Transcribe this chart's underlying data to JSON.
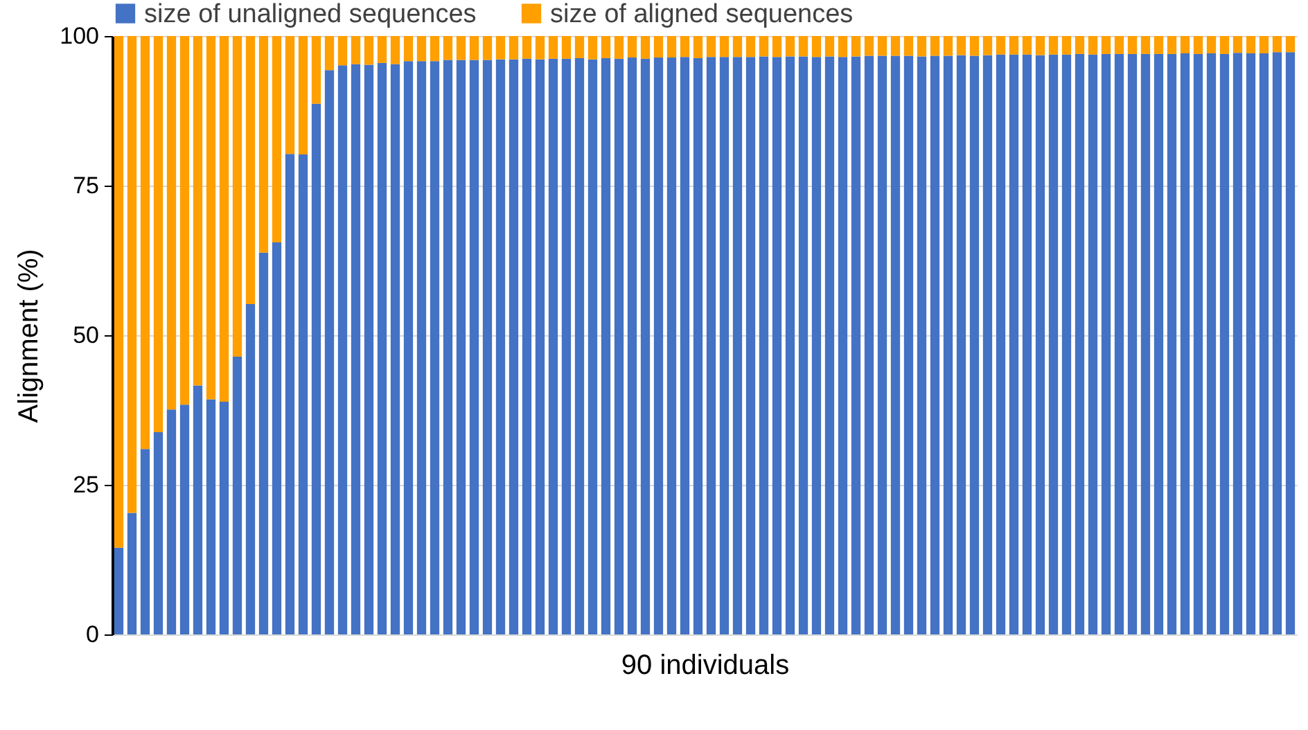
{
  "chart_data": {
    "type": "bar",
    "stacked": true,
    "xlabel": "90 individuals",
    "ylabel": "Alignment (%)",
    "categories": [
      null,
      null,
      null,
      null,
      null,
      null,
      null,
      null,
      null,
      null,
      null,
      null,
      null,
      null,
      null,
      null,
      null,
      null,
      null,
      null,
      null,
      null,
      null,
      null,
      null,
      null,
      null,
      null,
      null,
      null,
      null,
      null,
      null,
      null,
      null,
      null,
      null,
      null,
      null,
      null,
      null,
      null,
      null,
      null,
      null,
      null,
      null,
      null,
      null,
      null,
      null,
      null,
      null,
      null,
      null,
      null,
      null,
      null,
      null,
      null,
      null,
      null,
      null,
      null,
      null,
      null,
      null,
      null,
      null,
      null,
      null,
      null,
      null,
      null,
      null,
      null,
      null,
      null,
      null,
      null,
      null,
      null,
      null,
      null,
      null,
      null,
      null,
      null,
      null,
      null
    ],
    "series": [
      {
        "name": "size of unaligned sequences",
        "color": "#4472c4",
        "values": [
          14.5,
          20.3,
          31,
          33.8,
          37.6,
          38.4,
          41.6,
          39.3,
          38.9,
          46.4,
          55.2,
          63.8,
          65.5,
          80.3,
          80.2,
          88.7,
          94.3,
          95.1,
          95.3,
          95.2,
          95.5,
          95.3,
          95.8,
          95.8,
          95.8,
          96.0,
          96.0,
          96.0,
          96.0,
          96.1,
          96.1,
          96.2,
          96.1,
          96.2,
          96.2,
          96.3,
          96.1,
          96.3,
          96.2,
          96.4,
          96.2,
          96.4,
          96.4,
          96.5,
          96.3,
          96.5,
          96.5,
          96.5,
          96.5,
          96.6,
          96.5,
          96.6,
          96.6,
          96.5,
          96.6,
          96.5,
          96.6,
          96.7,
          96.7,
          96.7,
          96.7,
          96.6,
          96.7,
          96.7,
          96.8,
          96.7,
          96.8,
          96.9,
          96.9,
          96.9,
          96.8,
          96.9,
          96.9,
          97.0,
          96.9,
          97.0,
          97.0,
          97.0,
          97.0,
          97.0,
          97.0,
          97.1,
          97.0,
          97.1,
          97.0,
          97.2,
          97.1,
          97.1,
          97.3,
          97.3
        ]
      },
      {
        "name": "size of aligned sequences",
        "color": "#ff9f00",
        "values": [
          85.5,
          79.7,
          69,
          66.2,
          62.4,
          61.6,
          58.4,
          60.7,
          61.1,
          53.6,
          44.8,
          36.2,
          34.5,
          19.7,
          19.8,
          11.3,
          5.7,
          4.9,
          4.7,
          4.8,
          4.5,
          4.7,
          4.2,
          4.2,
          4.2,
          4.0,
          4.0,
          4.0,
          4.0,
          3.9,
          3.9,
          3.8,
          3.9,
          3.8,
          3.8,
          3.7,
          3.9,
          3.7,
          3.8,
          3.6,
          3.8,
          3.6,
          3.6,
          3.5,
          3.7,
          3.5,
          3.5,
          3.5,
          3.5,
          3.4,
          3.5,
          3.4,
          3.4,
          3.5,
          3.4,
          3.5,
          3.4,
          3.3,
          3.3,
          3.3,
          3.3,
          3.4,
          3.3,
          3.3,
          3.2,
          3.3,
          3.2,
          3.1,
          3.1,
          3.1,
          3.2,
          3.1,
          3.1,
          3.0,
          3.1,
          3.0,
          3.0,
          3.0,
          3.0,
          3.0,
          3.0,
          2.9,
          3.0,
          2.9,
          3.0,
          2.8,
          2.9,
          2.9,
          2.7,
          2.7
        ]
      }
    ],
    "ylim": [
      0,
      100
    ],
    "yticks": [
      0,
      25,
      50,
      75,
      100
    ],
    "grid": "y",
    "legend": "top",
    "tick_labels": "y"
  }
}
